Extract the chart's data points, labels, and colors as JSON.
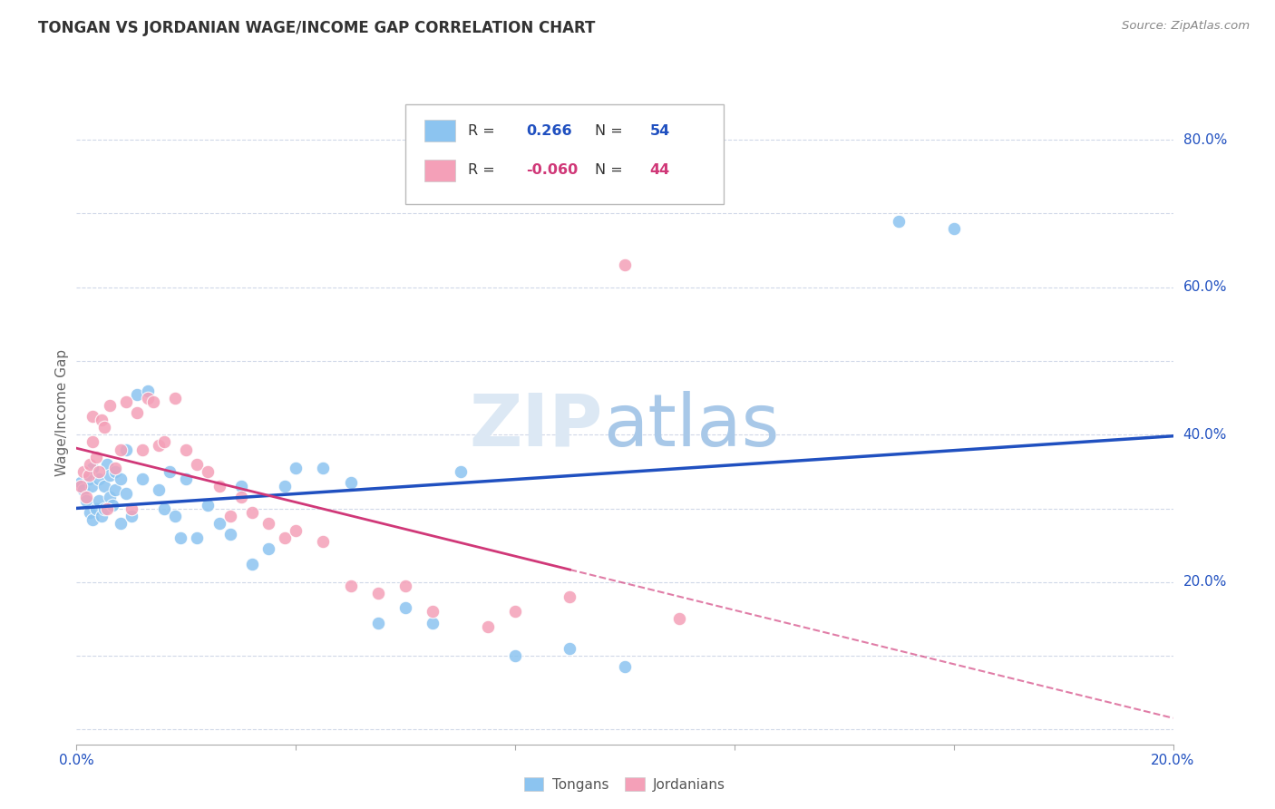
{
  "title": "TONGAN VS JORDANIAN WAGE/INCOME GAP CORRELATION CHART",
  "source": "Source: ZipAtlas.com",
  "ylabel": "Wage/Income Gap",
  "xlim": [
    0.0,
    0.2
  ],
  "ylim": [
    -0.02,
    0.88
  ],
  "yticks": [
    0.0,
    0.2,
    0.4,
    0.6,
    0.8
  ],
  "ytick_labels": [
    "",
    "20.0%",
    "40.0%",
    "60.0%",
    "80.0%"
  ],
  "xticks": [
    0.0,
    0.04,
    0.08,
    0.12,
    0.16,
    0.2
  ],
  "xtick_labels": [
    "0.0%",
    "",
    "",
    "",
    "",
    "20.0%"
  ],
  "R_tongan": 0.266,
  "N_tongan": 54,
  "R_jordanian": -0.06,
  "N_jordanian": 44,
  "color_tongan": "#8cc4f0",
  "color_jordanian": "#f4a0b8",
  "line_color_tongan": "#2050c0",
  "line_color_jordanian": "#d03878",
  "background_color": "#ffffff",
  "grid_color": "#d0d8e8",
  "tongan_x": [
    0.0008,
    0.0012,
    0.0018,
    0.0022,
    0.0025,
    0.0028,
    0.003,
    0.003,
    0.0035,
    0.004,
    0.004,
    0.0045,
    0.005,
    0.005,
    0.0055,
    0.006,
    0.006,
    0.0065,
    0.007,
    0.007,
    0.008,
    0.008,
    0.009,
    0.009,
    0.01,
    0.011,
    0.012,
    0.013,
    0.015,
    0.016,
    0.017,
    0.018,
    0.019,
    0.02,
    0.022,
    0.024,
    0.026,
    0.028,
    0.03,
    0.032,
    0.035,
    0.038,
    0.04,
    0.045,
    0.05,
    0.055,
    0.06,
    0.065,
    0.07,
    0.08,
    0.09,
    0.1,
    0.15,
    0.16
  ],
  "tongan_y": [
    0.335,
    0.325,
    0.31,
    0.34,
    0.295,
    0.33,
    0.285,
    0.355,
    0.3,
    0.34,
    0.31,
    0.29,
    0.33,
    0.3,
    0.36,
    0.315,
    0.345,
    0.305,
    0.325,
    0.35,
    0.28,
    0.34,
    0.32,
    0.38,
    0.29,
    0.455,
    0.34,
    0.46,
    0.325,
    0.3,
    0.35,
    0.29,
    0.26,
    0.34,
    0.26,
    0.305,
    0.28,
    0.265,
    0.33,
    0.225,
    0.245,
    0.33,
    0.355,
    0.355,
    0.335,
    0.145,
    0.165,
    0.145,
    0.35,
    0.1,
    0.11,
    0.085,
    0.69,
    0.68
  ],
  "jordanian_x": [
    0.0008,
    0.0012,
    0.0018,
    0.0022,
    0.0025,
    0.003,
    0.003,
    0.0035,
    0.004,
    0.0045,
    0.005,
    0.0055,
    0.006,
    0.007,
    0.008,
    0.009,
    0.01,
    0.011,
    0.012,
    0.013,
    0.014,
    0.015,
    0.016,
    0.018,
    0.02,
    0.022,
    0.024,
    0.026,
    0.028,
    0.03,
    0.032,
    0.035,
    0.038,
    0.04,
    0.045,
    0.05,
    0.055,
    0.06,
    0.065,
    0.075,
    0.08,
    0.09,
    0.1,
    0.11
  ],
  "jordanian_y": [
    0.33,
    0.35,
    0.315,
    0.345,
    0.36,
    0.39,
    0.425,
    0.37,
    0.35,
    0.42,
    0.41,
    0.3,
    0.44,
    0.355,
    0.38,
    0.445,
    0.3,
    0.43,
    0.38,
    0.45,
    0.445,
    0.385,
    0.39,
    0.45,
    0.38,
    0.36,
    0.35,
    0.33,
    0.29,
    0.315,
    0.295,
    0.28,
    0.26,
    0.27,
    0.255,
    0.195,
    0.185,
    0.195,
    0.16,
    0.14,
    0.16,
    0.18,
    0.63,
    0.15
  ]
}
